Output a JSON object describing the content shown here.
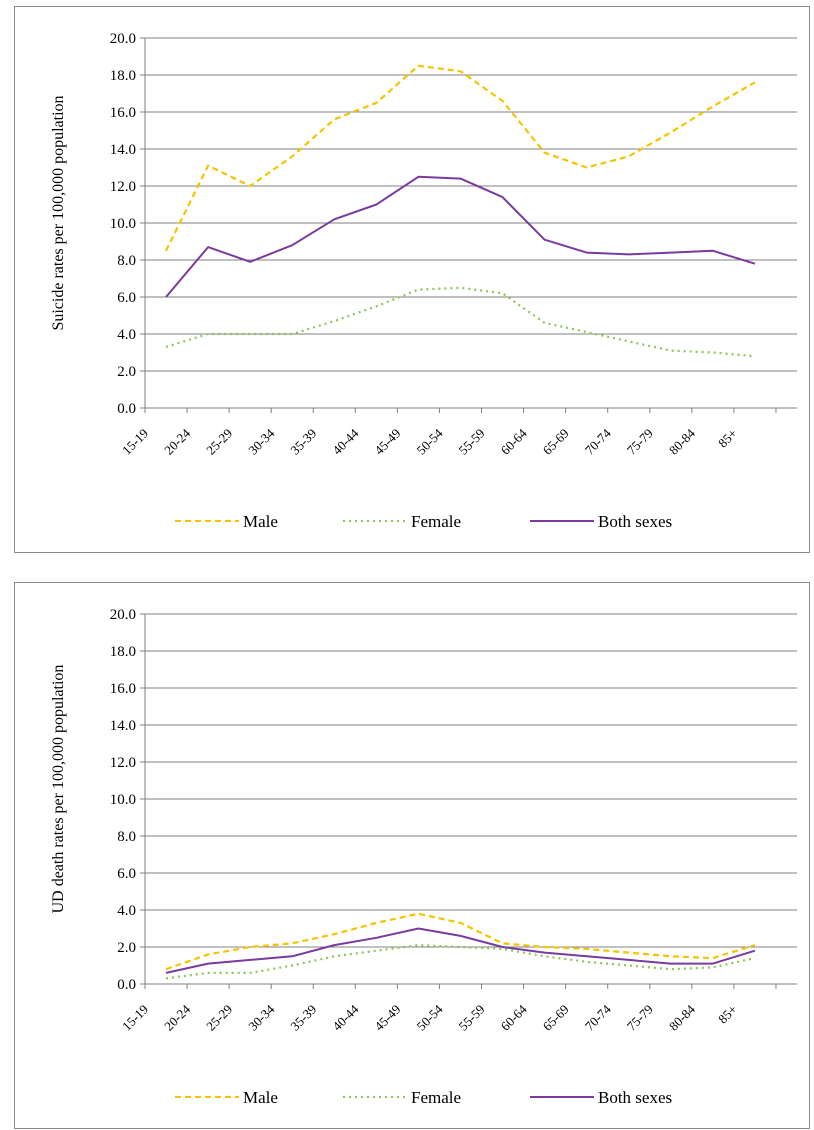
{
  "chart_data": [
    {
      "type": "line",
      "ylabel": "Suicide rates per 100,000 population",
      "xlabel": "",
      "ylim": [
        0,
        20
      ],
      "ytick_step": 2,
      "grid": true,
      "legend_position": "bottom",
      "categories": [
        "15-19",
        "20-24",
        "25-29",
        "30-34",
        "35-39",
        "40-44",
        "45-49",
        "50-54",
        "55-59",
        "60-64",
        "65-69",
        "70-74",
        "75-79",
        "80-84",
        "85+"
      ],
      "series": [
        {
          "name": "Male",
          "color": "#f5c400",
          "style": "dashed",
          "values": [
            8.5,
            13.1,
            12.0,
            13.6,
            15.6,
            16.5,
            18.5,
            18.2,
            16.6,
            13.8,
            13.0,
            13.6,
            14.9,
            16.3,
            17.6
          ]
        },
        {
          "name": "Female",
          "color": "#8cc455",
          "style": "dotted",
          "values": [
            3.3,
            4.0,
            4.0,
            4.0,
            4.7,
            5.5,
            6.4,
            6.5,
            6.2,
            4.6,
            4.1,
            3.6,
            3.1,
            3.0,
            2.8
          ]
        },
        {
          "name": "Both sexes",
          "color": "#7a3a9e",
          "style": "solid",
          "values": [
            6.0,
            8.7,
            7.9,
            8.8,
            10.2,
            11.0,
            12.5,
            12.4,
            11.4,
            9.1,
            8.4,
            8.3,
            8.4,
            8.5,
            7.8
          ]
        }
      ]
    },
    {
      "type": "line",
      "ylabel": "UD death rates per 100,000 population",
      "xlabel": "",
      "ylim": [
        0,
        20
      ],
      "ytick_step": 2,
      "grid": true,
      "legend_position": "bottom",
      "categories": [
        "15-19",
        "20-24",
        "25-29",
        "30-34",
        "35-39",
        "40-44",
        "45-49",
        "50-54",
        "55-59",
        "60-64",
        "65-69",
        "70-74",
        "75-79",
        "80-84",
        "85+"
      ],
      "series": [
        {
          "name": "Male",
          "color": "#f5c400",
          "style": "dashed",
          "values": [
            0.8,
            1.6,
            2.0,
            2.2,
            2.7,
            3.3,
            3.8,
            3.3,
            2.2,
            2.0,
            1.9,
            1.7,
            1.5,
            1.4,
            2.1
          ]
        },
        {
          "name": "Female",
          "color": "#8cc455",
          "style": "dotted",
          "values": [
            0.3,
            0.6,
            0.6,
            1.0,
            1.5,
            1.8,
            2.1,
            2.0,
            1.9,
            1.5,
            1.2,
            1.0,
            0.8,
            0.9,
            1.4
          ]
        },
        {
          "name": "Both sexes",
          "color": "#7a3a9e",
          "style": "solid",
          "values": [
            0.6,
            1.1,
            1.3,
            1.5,
            2.1,
            2.5,
            3.0,
            2.6,
            2.0,
            1.7,
            1.5,
            1.3,
            1.1,
            1.1,
            1.8
          ]
        }
      ]
    }
  ]
}
